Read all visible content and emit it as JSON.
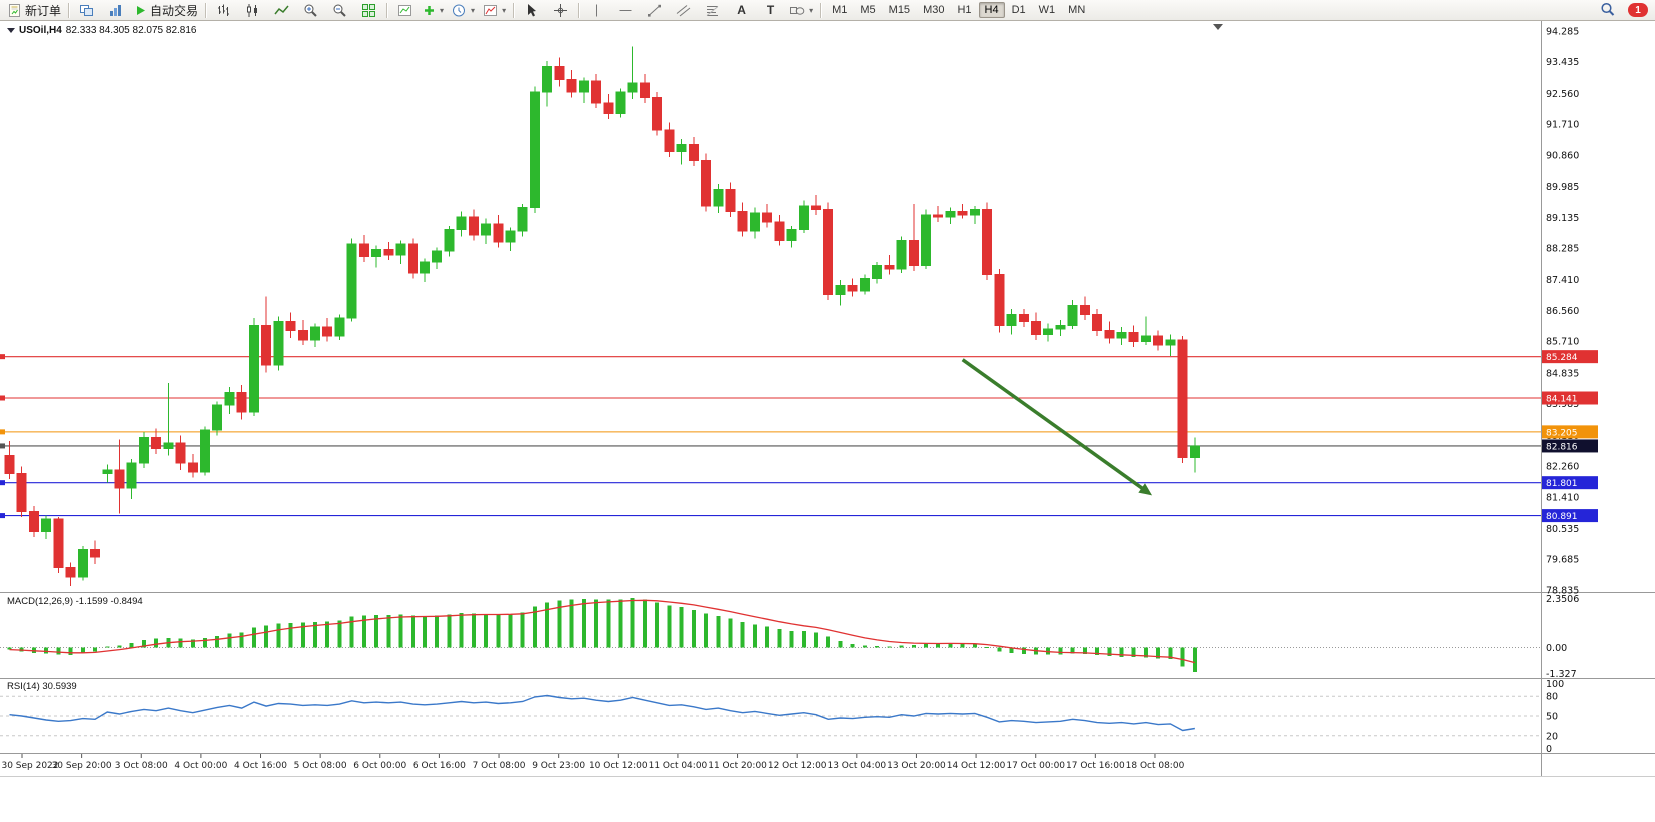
{
  "toolbar": {
    "new_order_label": "新订单",
    "autotrade_label": "自动交易",
    "text_tool_label": "A",
    "label_tool_label": "T",
    "timeframes": [
      "M1",
      "M5",
      "M15",
      "M30",
      "H1",
      "H4",
      "D1",
      "W1",
      "MN"
    ],
    "active_timeframe": "H4",
    "notification_count": "1"
  },
  "chart_title": {
    "symbol_period": "USOil,H4",
    "ohlc_display": "82.333 84.305 82.075 82.816",
    "ohlc": {
      "open": "82.333",
      "high": "84.305",
      "low": "82.075",
      "close": "82.816"
    }
  },
  "colors": {
    "bull": "#2db82d",
    "bear": "#e03232",
    "macd_histogram": "#2db82d",
    "macd_signal": "#e03232",
    "rsi_line": "#3a78c9",
    "arrow": "#3a7d2c"
  },
  "chart_data": {
    "type": "candlestick",
    "symbol": "USOil",
    "period": "H4",
    "price_axis_labels": [
      "94.285",
      "93.435",
      "92.560",
      "91.710",
      "90.860",
      "89.985",
      "89.135",
      "88.285",
      "87.410",
      "86.560",
      "85.710",
      "84.835",
      "83.985",
      "83.110",
      "82.260",
      "81.410",
      "80.535",
      "79.685",
      "78.835"
    ],
    "time_axis_labels": [
      "30 Sep 2022",
      "30 Sep 20:00",
      "3 Oct 08:00",
      "4 Oct 00:00",
      "4 Oct 16:00",
      "5 Oct 08:00",
      "6 Oct 00:00",
      "6 Oct 16:00",
      "7 Oct 08:00",
      "9 Oct 23:00",
      "10 Oct 12:00",
      "11 Oct 04:00",
      "11 Oct 20:00",
      "12 Oct 12:00",
      "13 Oct 04:00",
      "13 Oct 20:00",
      "14 Oct 12:00",
      "17 Oct 00:00",
      "17 Oct 16:00",
      "18 Oct 08:00"
    ],
    "horizontal_lines": [
      {
        "price": 85.284,
        "label": "85.284",
        "color": "#e03232"
      },
      {
        "price": 84.141,
        "label": "84.141",
        "color": "#e03232"
      },
      {
        "price": 83.205,
        "label": "83.205",
        "color": "#f2930a"
      },
      {
        "price": 82.816,
        "label": "82.816",
        "color": "#555555",
        "badge_color": "#10102e",
        "is_current_price": true
      },
      {
        "price": 81.801,
        "label": "81.801",
        "color": "#2525d8"
      },
      {
        "price": 80.891,
        "label": "80.891",
        "color": "#2525d8"
      }
    ],
    "trend_arrow": {
      "from": {
        "bar": 78,
        "price": 85.2
      },
      "to": {
        "bar": 93.5,
        "price": 81.45
      }
    },
    "candles_ohlc": [
      [
        82.55,
        82.95,
        81.9,
        82.05
      ],
      [
        82.05,
        82.25,
        80.85,
        81.0
      ],
      [
        81.0,
        81.15,
        80.3,
        80.45
      ],
      [
        80.45,
        80.9,
        80.25,
        80.8
      ],
      [
        80.8,
        80.85,
        79.3,
        79.45
      ],
      [
        79.45,
        79.6,
        78.95,
        79.2
      ],
      [
        79.2,
        80.05,
        79.1,
        79.95
      ],
      [
        79.95,
        80.2,
        79.55,
        79.75
      ],
      [
        82.05,
        82.3,
        81.8,
        82.15
      ],
      [
        82.15,
        83.0,
        80.95,
        81.65
      ],
      [
        81.65,
        82.45,
        81.35,
        82.35
      ],
      [
        82.35,
        83.2,
        82.2,
        83.05
      ],
      [
        83.05,
        83.3,
        82.6,
        82.75
      ],
      [
        82.75,
        84.55,
        82.55,
        82.9
      ],
      [
        82.9,
        83.1,
        82.15,
        82.35
      ],
      [
        82.35,
        82.6,
        81.95,
        82.1
      ],
      [
        82.1,
        83.35,
        82.0,
        83.25
      ],
      [
        83.25,
        84.05,
        83.1,
        83.95
      ],
      [
        83.95,
        84.45,
        83.7,
        84.3
      ],
      [
        84.3,
        84.5,
        83.55,
        83.75
      ],
      [
        83.75,
        86.35,
        83.65,
        86.15
      ],
      [
        86.15,
        86.95,
        84.85,
        85.05
      ],
      [
        85.05,
        86.4,
        84.9,
        86.25
      ],
      [
        86.25,
        86.5,
        85.8,
        86.0
      ],
      [
        86.0,
        86.3,
        85.6,
        85.75
      ],
      [
        85.75,
        86.2,
        85.55,
        86.1
      ],
      [
        86.1,
        86.35,
        85.7,
        85.85
      ],
      [
        85.85,
        86.45,
        85.75,
        86.35
      ],
      [
        86.35,
        88.55,
        86.25,
        88.4
      ],
      [
        88.4,
        88.65,
        87.9,
        88.05
      ],
      [
        88.05,
        88.35,
        87.75,
        88.25
      ],
      [
        88.25,
        88.45,
        87.95,
        88.1
      ],
      [
        88.1,
        88.5,
        87.85,
        88.4
      ],
      [
        88.4,
        88.55,
        87.45,
        87.6
      ],
      [
        87.6,
        88.0,
        87.35,
        87.9
      ],
      [
        87.9,
        88.3,
        87.7,
        88.2
      ],
      [
        88.2,
        88.9,
        88.05,
        88.8
      ],
      [
        88.8,
        89.3,
        88.6,
        89.15
      ],
      [
        89.15,
        89.35,
        88.5,
        88.65
      ],
      [
        88.65,
        89.1,
        88.4,
        88.95
      ],
      [
        88.95,
        89.2,
        88.3,
        88.45
      ],
      [
        88.45,
        88.85,
        88.2,
        88.75
      ],
      [
        88.75,
        89.5,
        88.6,
        89.4
      ],
      [
        89.4,
        92.75,
        89.25,
        92.6
      ],
      [
        92.6,
        93.45,
        92.2,
        93.3
      ],
      [
        93.3,
        93.55,
        92.75,
        92.95
      ],
      [
        92.95,
        93.2,
        92.45,
        92.6
      ],
      [
        92.6,
        93.0,
        92.3,
        92.9
      ],
      [
        92.9,
        93.1,
        92.15,
        92.3
      ],
      [
        92.3,
        92.55,
        91.85,
        92.0
      ],
      [
        92.0,
        92.7,
        91.9,
        92.6
      ],
      [
        92.6,
        93.85,
        92.4,
        92.85
      ],
      [
        92.85,
        93.1,
        92.3,
        92.45
      ],
      [
        92.45,
        92.6,
        91.4,
        91.55
      ],
      [
        91.55,
        91.75,
        90.8,
        90.95
      ],
      [
        90.95,
        91.3,
        90.6,
        91.15
      ],
      [
        91.15,
        91.35,
        90.55,
        90.7
      ],
      [
        90.7,
        90.9,
        89.3,
        89.45
      ],
      [
        89.45,
        90.05,
        89.25,
        89.9
      ],
      [
        89.9,
        90.1,
        89.15,
        89.3
      ],
      [
        89.3,
        89.55,
        88.6,
        88.75
      ],
      [
        88.75,
        89.4,
        88.55,
        89.25
      ],
      [
        89.25,
        89.5,
        88.85,
        89.0
      ],
      [
        89.0,
        89.2,
        88.35,
        88.5
      ],
      [
        88.5,
        88.9,
        88.3,
        88.8
      ],
      [
        88.8,
        89.6,
        88.7,
        89.45
      ],
      [
        89.45,
        89.75,
        89.2,
        89.35
      ],
      [
        89.35,
        89.55,
        86.85,
        87.0
      ],
      [
        87.0,
        87.4,
        86.7,
        87.25
      ],
      [
        87.25,
        87.45,
        86.95,
        87.1
      ],
      [
        87.1,
        87.55,
        87.0,
        87.45
      ],
      [
        87.45,
        87.9,
        87.3,
        87.8
      ],
      [
        87.8,
        88.1,
        87.55,
        87.7
      ],
      [
        87.7,
        88.6,
        87.6,
        88.5
      ],
      [
        88.5,
        89.5,
        87.65,
        87.8
      ],
      [
        87.8,
        89.35,
        87.7,
        89.2
      ],
      [
        89.2,
        89.45,
        89.0,
        89.15
      ],
      [
        89.15,
        89.4,
        88.95,
        89.3
      ],
      [
        89.3,
        89.5,
        89.1,
        89.2
      ],
      [
        89.2,
        89.45,
        88.95,
        89.35
      ],
      [
        89.35,
        89.55,
        87.4,
        87.55
      ],
      [
        87.55,
        87.7,
        85.95,
        86.15
      ],
      [
        86.15,
        86.6,
        85.9,
        86.45
      ],
      [
        86.45,
        86.6,
        86.1,
        86.25
      ],
      [
        86.25,
        86.5,
        85.75,
        85.9
      ],
      [
        85.9,
        86.2,
        85.7,
        86.05
      ],
      [
        86.05,
        86.3,
        85.85,
        86.15
      ],
      [
        86.15,
        86.85,
        86.05,
        86.7
      ],
      [
        86.7,
        86.95,
        86.3,
        86.45
      ],
      [
        86.45,
        86.6,
        85.85,
        86.0
      ],
      [
        86.0,
        86.25,
        85.65,
        85.8
      ],
      [
        85.8,
        86.1,
        85.6,
        85.95
      ],
      [
        85.95,
        86.15,
        85.55,
        85.7
      ],
      [
        85.7,
        86.4,
        85.6,
        85.85
      ],
      [
        85.85,
        86.0,
        85.45,
        85.6
      ],
      [
        85.6,
        85.9,
        85.3,
        85.75
      ],
      [
        85.75,
        85.85,
        82.35,
        82.5
      ],
      [
        82.5,
        83.05,
        82.08,
        82.82
      ]
    ],
    "macd": {
      "display": "MACD(12,26,9) -1.1599 -0.8494",
      "params": "12,26,9",
      "value": -1.1599,
      "signal": -0.8494,
      "scale_labels": [
        "2.3506",
        "0.00",
        "-1.327"
      ],
      "histogram": [
        -0.1,
        -0.18,
        -0.25,
        -0.28,
        -0.32,
        -0.35,
        -0.25,
        -0.18,
        0.05,
        0.1,
        0.22,
        0.35,
        0.42,
        0.45,
        0.42,
        0.38,
        0.45,
        0.55,
        0.68,
        0.72,
        0.95,
        1.05,
        1.15,
        1.18,
        1.2,
        1.22,
        1.25,
        1.3,
        1.48,
        1.52,
        1.55,
        1.55,
        1.58,
        1.52,
        1.5,
        1.52,
        1.58,
        1.65,
        1.62,
        1.6,
        1.58,
        1.6,
        1.68,
        1.95,
        2.15,
        2.25,
        2.28,
        2.32,
        2.3,
        2.28,
        2.3,
        2.35,
        2.28,
        2.15,
        2.0,
        1.92,
        1.8,
        1.62,
        1.5,
        1.38,
        1.22,
        1.1,
        1.0,
        0.88,
        0.8,
        0.78,
        0.72,
        0.52,
        0.32,
        0.18,
        0.1,
        0.08,
        0.06,
        0.1,
        0.12,
        0.16,
        0.18,
        0.2,
        0.18,
        0.16,
        0.02,
        -0.18,
        -0.26,
        -0.3,
        -0.34,
        -0.34,
        -0.32,
        -0.28,
        -0.3,
        -0.36,
        -0.4,
        -0.44,
        -0.46,
        -0.48,
        -0.52,
        -0.55,
        -0.9,
        -1.16
      ]
    },
    "rsi": {
      "display": "RSI(14) 30.5939",
      "period": 14,
      "value": 30.5939,
      "scale_labels": [
        "100",
        "80",
        "50",
        "20",
        "0"
      ],
      "levels": [
        80,
        50,
        20
      ],
      "values": [
        52,
        50,
        47,
        44,
        42,
        43,
        46,
        45,
        56,
        53,
        57,
        60,
        58,
        62,
        58,
        55,
        59,
        63,
        66,
        62,
        71,
        65,
        69,
        68,
        66,
        67,
        66,
        68,
        73,
        70,
        71,
        70,
        71,
        68,
        67,
        68,
        70,
        72,
        70,
        71,
        69,
        70,
        72,
        79,
        81,
        78,
        76,
        77,
        74,
        72,
        74,
        78,
        74,
        70,
        66,
        67,
        64,
        60,
        62,
        58,
        55,
        57,
        54,
        51,
        53,
        55,
        52,
        45,
        47,
        46,
        48,
        49,
        48,
        52,
        50,
        54,
        53,
        54,
        53,
        54,
        48,
        41,
        43,
        42,
        40,
        41,
        42,
        45,
        43,
        40,
        39,
        40,
        38,
        40,
        37,
        38,
        28,
        31
      ]
    }
  }
}
